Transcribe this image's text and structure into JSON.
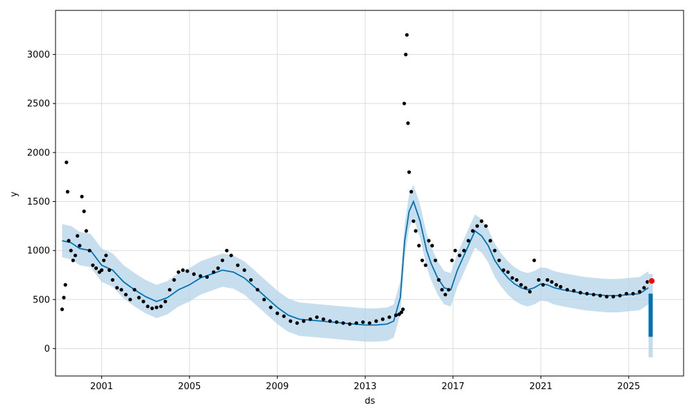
{
  "chart_data": {
    "type": "line",
    "xlabel": "ds",
    "ylabel": "y",
    "xlim": [
      1998.9,
      2027.5
    ],
    "ylim": [
      -280,
      3450
    ],
    "x_ticks": [
      2001,
      2005,
      2009,
      2013,
      2017,
      2021,
      2025
    ],
    "x_tick_labels": [
      "2001",
      "2005",
      "2009",
      "2013",
      "2017",
      "2021",
      "2025"
    ],
    "y_ticks": [
      0,
      500,
      1000,
      1500,
      2000,
      2500,
      3000
    ],
    "y_tick_labels": [
      "0",
      "500",
      "1000",
      "1500",
      "2000",
      "2500",
      "3000"
    ],
    "grid": true,
    "colors": {
      "observed": "#000000",
      "forecast_line": "#0072B2",
      "uncertainty_band": "#B4D3E8",
      "highlight": "#FF0000"
    },
    "series": [
      {
        "role": "observed",
        "marker": "dot",
        "x": [
          1999.2,
          1999.28,
          1999.35,
          1999.4,
          1999.45,
          1999.5,
          1999.6,
          1999.7,
          1999.8,
          1999.9,
          2000.0,
          2000.1,
          2000.2,
          2000.3,
          2000.45,
          2000.6,
          2000.75,
          2000.9,
          2001.0,
          2001.1,
          2001.2,
          2001.35,
          2001.5,
          2001.7,
          2001.9,
          2002.1,
          2002.3,
          2002.5,
          2002.7,
          2002.9,
          2003.1,
          2003.3,
          2003.5,
          2003.7,
          2003.9,
          2004.1,
          2004.3,
          2004.5,
          2004.7,
          2004.9,
          2005.2,
          2005.5,
          2005.8,
          2006.1,
          2006.3,
          2006.5,
          2006.7,
          2006.9,
          2007.2,
          2007.5,
          2007.8,
          2008.1,
          2008.4,
          2008.7,
          2009.0,
          2009.3,
          2009.6,
          2009.9,
          2010.2,
          2010.5,
          2010.8,
          2011.1,
          2011.4,
          2011.7,
          2012.0,
          2012.3,
          2012.6,
          2012.9,
          2013.2,
          2013.5,
          2013.8,
          2014.1,
          2014.4,
          2014.55,
          2014.65,
          2014.72,
          2014.78,
          2014.85,
          2014.9,
          2014.95,
          2015.0,
          2015.1,
          2015.2,
          2015.3,
          2015.45,
          2015.6,
          2015.75,
          2015.9,
          2016.05,
          2016.2,
          2016.35,
          2016.5,
          2016.65,
          2016.8,
          2016.95,
          2017.1,
          2017.3,
          2017.5,
          2017.7,
          2017.9,
          2018.1,
          2018.3,
          2018.5,
          2018.7,
          2018.9,
          2019.1,
          2019.3,
          2019.5,
          2019.7,
          2019.9,
          2020.1,
          2020.3,
          2020.5,
          2020.7,
          2020.9,
          2021.1,
          2021.3,
          2021.5,
          2021.7,
          2021.9,
          2022.2,
          2022.5,
          2022.8,
          2023.1,
          2023.4,
          2023.7,
          2024.0,
          2024.3,
          2024.6,
          2024.9,
          2025.2,
          2025.5,
          2025.7,
          2025.85
        ],
        "y": [
          400,
          520,
          650,
          1900,
          1600,
          1100,
          1000,
          900,
          950,
          1150,
          1050,
          1550,
          1400,
          1200,
          1000,
          850,
          820,
          780,
          800,
          900,
          950,
          800,
          700,
          620,
          600,
          550,
          500,
          600,
          520,
          480,
          430,
          410,
          420,
          430,
          480,
          600,
          700,
          780,
          800,
          790,
          760,
          740,
          730,
          780,
          820,
          900,
          1000,
          950,
          850,
          800,
          700,
          600,
          500,
          420,
          360,
          330,
          280,
          260,
          280,
          300,
          320,
          300,
          280,
          270,
          260,
          250,
          260,
          270,
          260,
          280,
          300,
          320,
          340,
          350,
          370,
          400,
          2500,
          3000,
          3200,
          2300,
          1800,
          1600,
          1300,
          1200,
          1050,
          900,
          850,
          1100,
          1050,
          900,
          700,
          600,
          550,
          600,
          900,
          1000,
          950,
          1000,
          1100,
          1200,
          1250,
          1300,
          1250,
          1100,
          1000,
          900,
          800,
          780,
          720,
          700,
          650,
          620,
          580,
          900,
          700,
          650,
          700,
          680,
          650,
          630,
          600,
          590,
          570,
          560,
          550,
          540,
          530,
          530,
          540,
          560,
          560,
          580,
          620,
          680
        ]
      },
      {
        "role": "trend",
        "line": "solid",
        "x": [
          1999.2,
          1999.6,
          2000.0,
          2000.5,
          2001.0,
          2001.5,
          2002.0,
          2002.5,
          2003.0,
          2003.5,
          2004.0,
          2004.5,
          2005.0,
          2005.5,
          2006.0,
          2006.5,
          2007.0,
          2007.5,
          2008.0,
          2008.5,
          2009.0,
          2009.5,
          2010.0,
          2010.5,
          2011.0,
          2011.5,
          2012.0,
          2012.5,
          2013.0,
          2013.5,
          2014.0,
          2014.3,
          2014.6,
          2014.8,
          2015.0,
          2015.2,
          2015.5,
          2015.8,
          2016.0,
          2016.3,
          2016.6,
          2016.9,
          2017.2,
          2017.5,
          2017.8,
          2018.0,
          2018.3,
          2018.6,
          2018.9,
          2019.2,
          2019.5,
          2019.8,
          2020.1,
          2020.4,
          2020.7,
          2021.0,
          2021.3,
          2021.6,
          2022.0,
          2022.5,
          2023.0,
          2023.5,
          2024.0,
          2024.5,
          2025.0,
          2025.5,
          2025.9
        ],
        "y": [
          1100,
          1080,
          1020,
          1000,
          850,
          800,
          680,
          600,
          530,
          480,
          520,
          600,
          650,
          720,
          760,
          800,
          780,
          720,
          620,
          520,
          420,
          340,
          300,
          290,
          280,
          270,
          260,
          250,
          240,
          240,
          250,
          280,
          520,
          1100,
          1400,
          1500,
          1300,
          1000,
          870,
          720,
          620,
          600,
          800,
          950,
          1100,
          1200,
          1150,
          1050,
          900,
          800,
          720,
          660,
          620,
          600,
          620,
          660,
          650,
          620,
          600,
          580,
          560,
          550,
          540,
          540,
          550,
          560,
          620
        ]
      },
      {
        "role": "uncertainty_band",
        "x": [
          1999.2,
          1999.6,
          2000.0,
          2000.5,
          2001.0,
          2001.5,
          2002.0,
          2002.5,
          2003.0,
          2003.5,
          2004.0,
          2004.5,
          2005.0,
          2005.5,
          2006.0,
          2006.5,
          2007.0,
          2007.5,
          2008.0,
          2008.5,
          2009.0,
          2009.5,
          2010.0,
          2010.5,
          2011.0,
          2011.5,
          2012.0,
          2012.5,
          2013.0,
          2013.5,
          2014.0,
          2014.3,
          2014.6,
          2014.8,
          2015.0,
          2015.2,
          2015.5,
          2015.8,
          2016.0,
          2016.3,
          2016.6,
          2016.9,
          2017.2,
          2017.5,
          2017.8,
          2018.0,
          2018.3,
          2018.6,
          2018.9,
          2019.2,
          2019.5,
          2019.8,
          2020.1,
          2020.4,
          2020.7,
          2021.0,
          2021.3,
          2021.6,
          2022.0,
          2022.5,
          2023.0,
          2023.5,
          2024.0,
          2024.5,
          2025.0,
          2025.5,
          2025.9
        ],
        "upper": [
          1270,
          1250,
          1190,
          1170,
          1020,
          970,
          850,
          770,
          700,
          650,
          690,
          770,
          820,
          890,
          930,
          970,
          950,
          890,
          790,
          690,
          590,
          510,
          470,
          460,
          450,
          440,
          430,
          420,
          410,
          410,
          420,
          450,
          690,
          1270,
          1570,
          1670,
          1470,
          1170,
          1040,
          890,
          790,
          770,
          970,
          1120,
          1270,
          1370,
          1320,
          1220,
          1070,
          970,
          890,
          830,
          790,
          770,
          790,
          830,
          820,
          790,
          770,
          750,
          730,
          720,
          710,
          710,
          720,
          730,
          790
        ],
        "lower": [
          930,
          910,
          850,
          830,
          680,
          630,
          510,
          430,
          360,
          310,
          350,
          430,
          480,
          550,
          590,
          630,
          610,
          550,
          450,
          350,
          250,
          170,
          130,
          120,
          110,
          100,
          90,
          80,
          70,
          70,
          80,
          110,
          350,
          930,
          1230,
          1330,
          1130,
          830,
          700,
          550,
          450,
          430,
          630,
          780,
          930,
          1030,
          980,
          880,
          730,
          630,
          550,
          490,
          450,
          430,
          450,
          490,
          480,
          450,
          430,
          410,
          390,
          380,
          370,
          370,
          380,
          390,
          450
        ]
      },
      {
        "role": "forecast_interval",
        "x": [
          2026.0
        ],
        "lower": [
          120
        ],
        "upper": [
          560
        ],
        "band_lower": [
          -90
        ],
        "band_upper": [
          760
        ]
      },
      {
        "role": "highlight",
        "x": [
          2026.05
        ],
        "y": [
          690
        ]
      }
    ]
  }
}
